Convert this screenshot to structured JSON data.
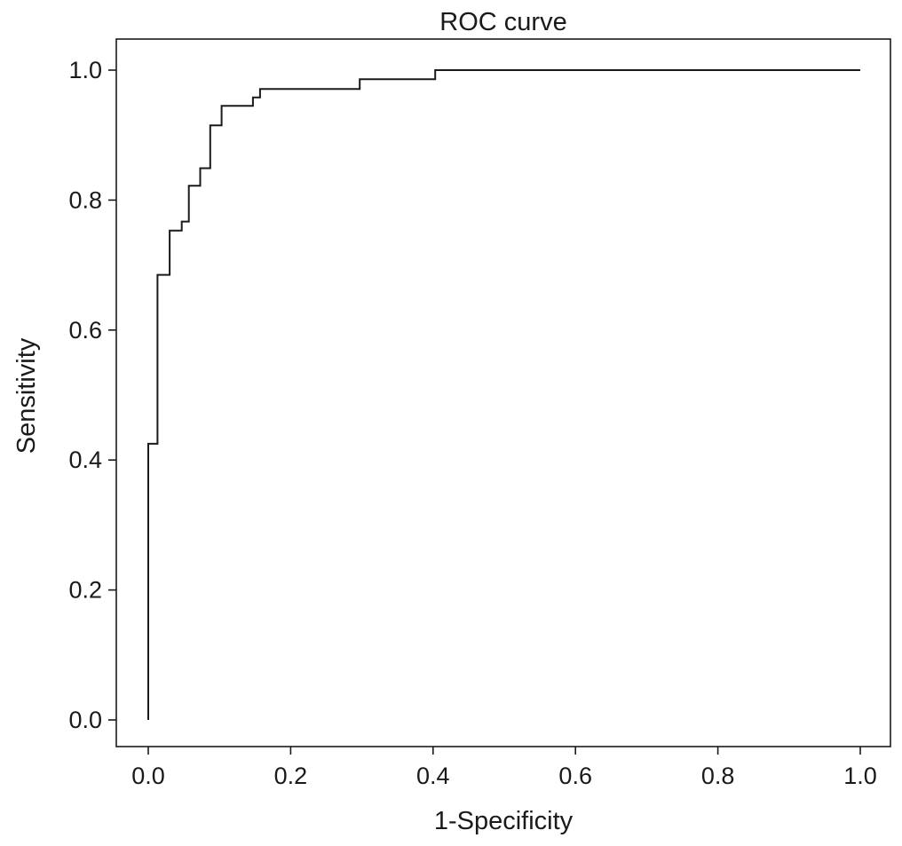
{
  "chart_data": {
    "type": "line",
    "title": "ROC curve",
    "xlabel": "1-Specificity",
    "ylabel": "Sensitivity",
    "xlim": [
      0.0,
      1.0
    ],
    "ylim": [
      0.0,
      1.0
    ],
    "xticks": [
      0.0,
      0.2,
      0.4,
      0.6,
      0.8,
      1.0
    ],
    "yticks": [
      0.0,
      0.2,
      0.4,
      0.6,
      0.8,
      1.0
    ],
    "xtick_labels": [
      "0.0",
      "0.2",
      "0.4",
      "0.6",
      "0.8",
      "1.0"
    ],
    "ytick_labels": [
      "0.0",
      "0.2",
      "0.4",
      "0.6",
      "0.8",
      "1.0"
    ],
    "grid": false,
    "step": true,
    "line_color": "#1a1a1a",
    "series": [
      {
        "x": [
          0.0,
          0.0,
          0.013,
          0.013,
          0.03,
          0.03,
          0.047,
          0.047,
          0.057,
          0.057,
          0.073,
          0.073,
          0.087,
          0.087,
          0.103,
          0.103,
          0.147,
          0.147,
          0.157,
          0.157,
          0.297,
          0.297,
          0.403,
          0.403,
          1.0
        ],
        "y": [
          0.0,
          0.425,
          0.425,
          0.685,
          0.685,
          0.753,
          0.753,
          0.767,
          0.767,
          0.822,
          0.822,
          0.849,
          0.849,
          0.915,
          0.915,
          0.945,
          0.945,
          0.958,
          0.958,
          0.971,
          0.971,
          0.986,
          0.986,
          1.0,
          1.0
        ]
      }
    ]
  }
}
